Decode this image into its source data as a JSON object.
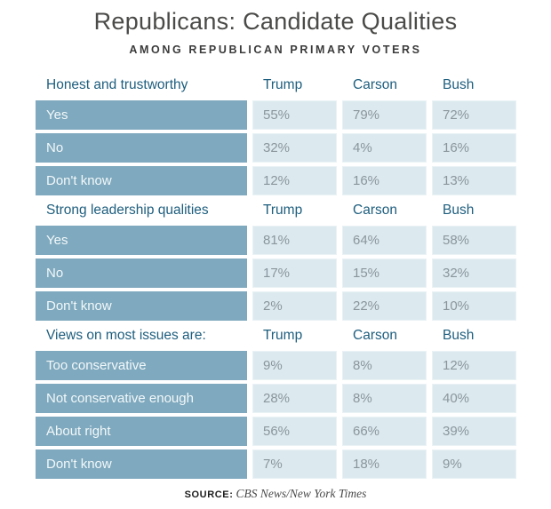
{
  "page": {
    "title": "Republicans: Candidate Qualities",
    "subtitle": "AMONG REPUBLICAN PRIMARY VOTERS",
    "source_label": "SOURCE:",
    "source_text": "CBS News/New York Times"
  },
  "colors": {
    "header_teal": "#1e5e7e",
    "label_cell_bg": "#7fa9be",
    "label_cell_text": "#f2f8fa",
    "value_cell_bg": "#dceaef",
    "value_cell_border": "#eaf2f5",
    "value_cell_text": "#8a959c",
    "title_text": "#4a4a48",
    "subtitle_text": "#3b3b3b"
  },
  "chart_data": {
    "type": "table",
    "title": "Republicans: Candidate Qualities",
    "subtitle": "AMONG REPUBLICAN PRIMARY VOTERS",
    "columns": [
      "Trump",
      "Carson",
      "Bush"
    ],
    "unit": "percent",
    "sections": [
      {
        "header": "Honest and trustworthy",
        "rows": [
          {
            "label": "Yes",
            "values": [
              "55%",
              "79%",
              "72%"
            ]
          },
          {
            "label": "No",
            "values": [
              "32%",
              "4%",
              "16%"
            ]
          },
          {
            "label": "Don't know",
            "values": [
              "12%",
              "16%",
              "13%"
            ]
          }
        ]
      },
      {
        "header": "Strong leadership qualities",
        "rows": [
          {
            "label": "Yes",
            "values": [
              "81%",
              "64%",
              "58%"
            ]
          },
          {
            "label": "No",
            "values": [
              "17%",
              "15%",
              "32%"
            ]
          },
          {
            "label": "Don't know",
            "values": [
              "2%",
              "22%",
              "10%"
            ]
          }
        ]
      },
      {
        "header": "Views on most issues are:",
        "rows": [
          {
            "label": "Too conservative",
            "values": [
              "9%",
              "8%",
              "12%"
            ]
          },
          {
            "label": "Not conservative enough",
            "values": [
              "28%",
              "8%",
              "40%"
            ]
          },
          {
            "label": "About right",
            "values": [
              "56%",
              "66%",
              "39%"
            ]
          },
          {
            "label": "Don't know",
            "values": [
              "7%",
              "18%",
              "9%"
            ]
          }
        ]
      }
    ],
    "source": "CBS News/New York Times"
  }
}
